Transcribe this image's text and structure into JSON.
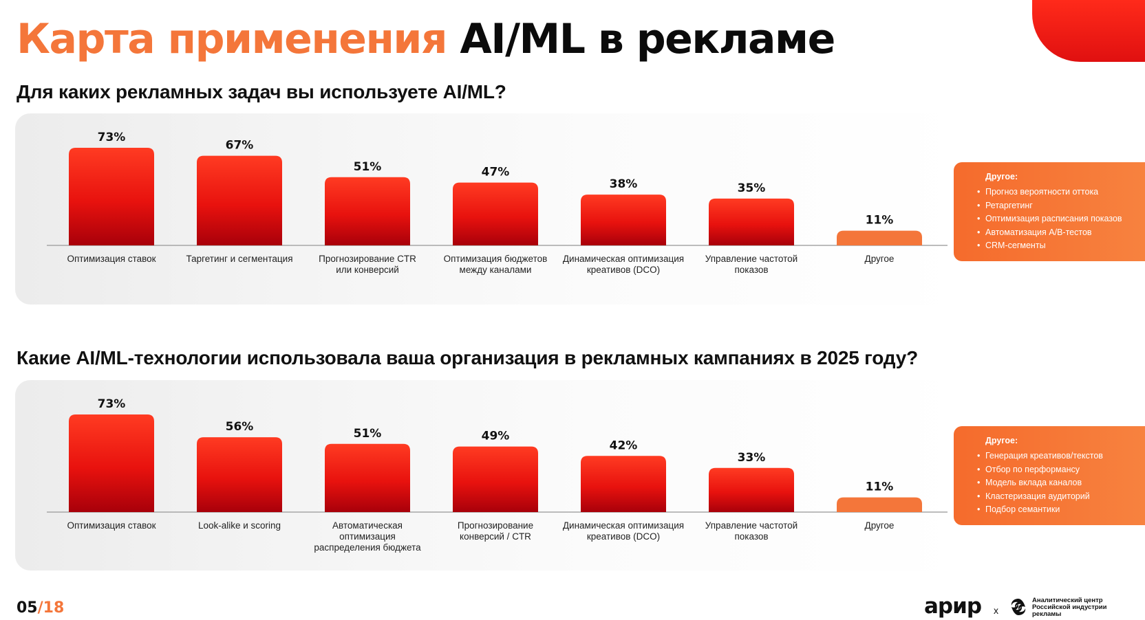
{
  "title": {
    "part1": "Карта применения",
    "part2": "AI/ML в рекламе"
  },
  "questions": {
    "q1": "Для каких рекламных задач вы используете AI/ML?",
    "q2": "Какие AI/ML-технологии использовала ваша организация в рекламных кампаниях в 2025 году?"
  },
  "chart_data": [
    {
      "type": "bar",
      "title": "Для каких рекламных задач вы используете AI/ML?",
      "categories": [
        [
          "Оптимизация ставок"
        ],
        [
          "Таргетинг и сегментация"
        ],
        [
          "Прогнозирование CTR",
          "или конверсий"
        ],
        [
          "Оптимизация бюджетов",
          "между каналами"
        ],
        [
          "Динамическая оптимизация",
          "креативов (DCO)"
        ],
        [
          "Управление частотой",
          "показов"
        ],
        [
          "Другое"
        ]
      ],
      "values": [
        73,
        67,
        51,
        47,
        38,
        35,
        11
      ],
      "value_labels": [
        "73%",
        "67%",
        "51%",
        "47%",
        "38%",
        "35%",
        "11%"
      ],
      "highlight_last": true,
      "ylim": [
        0,
        100
      ],
      "grid": false
    },
    {
      "type": "bar",
      "title": "Какие AI/ML-технологии использовала ваша организация в рекламных кампаниях в 2025 году?",
      "categories": [
        [
          "Оптимизация ставок"
        ],
        [
          "Look-alike и scoring"
        ],
        [
          "Автоматическая",
          "оптимизация",
          "распределения бюджета"
        ],
        [
          "Прогнозирование",
          "конверсий / CTR"
        ],
        [
          "Динамическая оптимизация",
          "креативов (DCO)"
        ],
        [
          "Управление частотой",
          "показов"
        ],
        [
          "Другое"
        ]
      ],
      "values": [
        73,
        56,
        51,
        49,
        42,
        33,
        11
      ],
      "value_labels": [
        "73%",
        "56%",
        "51%",
        "49%",
        "42%",
        "33%",
        "11%"
      ],
      "highlight_last": true,
      "ylim": [
        0,
        100
      ],
      "grid": false
    }
  ],
  "other1": {
    "title": "Другое:",
    "items": [
      "Прогноз вероятности оттока",
      "Ретаргетинг",
      "Оптимизация расписания показов",
      "Автоматизация А/В-тестов",
      "CRM-сегменты"
    ]
  },
  "other2": {
    "title": "Другое:",
    "items": [
      "Генерация креативов/текстов",
      "Отбор по перформансу",
      "Модель вклада каналов",
      "Кластеризация аудиторий",
      "Подбор семантики"
    ]
  },
  "footer": {
    "page_current": "05",
    "page_total": "/18",
    "logo_apir": "арир",
    "logo_x": "x",
    "center_name": [
      "Аналитический центр",
      "Российской индустрии",
      "рекламы"
    ]
  },
  "colors": {
    "bar_top": "#ff3b22",
    "bar_bottom": "#a8000a",
    "other_bar": "#f4763a",
    "accent_orange": "#f4763a",
    "accent_red": "#e8140e"
  }
}
